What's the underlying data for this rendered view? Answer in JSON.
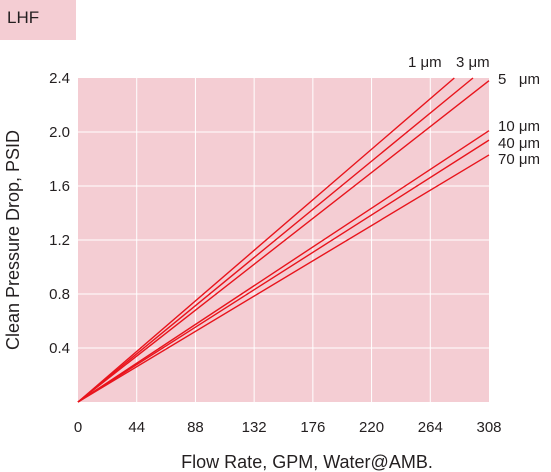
{
  "badge": "LHF",
  "chart_data": {
    "type": "line",
    "xlabel": "Flow Rate, GPM, Water@AMB.",
    "ylabel": "Clean Pressure Drop, PSID",
    "xlim": [
      0,
      308
    ],
    "ylim": [
      0,
      2.4
    ],
    "xticks": [
      "0",
      "44",
      "88",
      "132",
      "176",
      "220",
      "264",
      "308"
    ],
    "yticks": [
      "0.4",
      "0.8",
      "1.2",
      "1.6",
      "2.0",
      "2.4"
    ],
    "grid": true,
    "colors": {
      "plot_bg": "#f4cdd3",
      "grid": "#ffffff",
      "line": "#e8141c",
      "badge_bg": "#f4cdd3"
    },
    "series": [
      {
        "name": "1 μm",
        "x": [
          0,
          282
        ],
        "y": [
          0,
          2.4
        ]
      },
      {
        "name": "3 μm",
        "x": [
          0,
          296
        ],
        "y": [
          0,
          2.4
        ]
      },
      {
        "name": "5   μm",
        "x": [
          0,
          308
        ],
        "y": [
          0,
          2.38
        ]
      },
      {
        "name": "10 μm",
        "x": [
          0,
          308
        ],
        "y": [
          0,
          2.01
        ]
      },
      {
        "name": "40 μm",
        "x": [
          0,
          308
        ],
        "y": [
          0,
          1.94
        ]
      },
      {
        "name": "70 μm",
        "x": [
          0,
          308
        ],
        "y": [
          0,
          1.83
        ]
      }
    ]
  }
}
